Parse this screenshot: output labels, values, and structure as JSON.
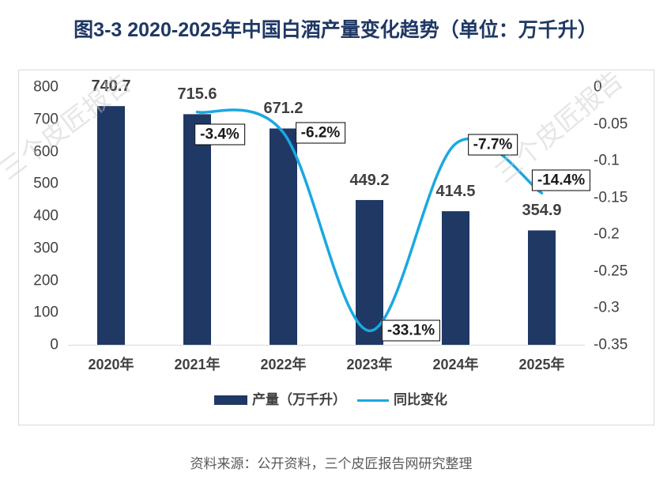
{
  "title": "图3-3 2020-2025年中国白酒产量变化趋势（单位：万千升）",
  "watermark": "三个皮匠报告",
  "source": "资料来源：公开资料，三个皮匠报告网研究整理",
  "colors": {
    "title": "#1F3864",
    "bar": "#1F3864",
    "line": "#1BA8E0",
    "axis_text": "#404040",
    "label_text": "#1A1A1A",
    "label_border": "#000000",
    "source_text": "#595959",
    "frame": "#D9D9D9",
    "watermark": "#C8C8C8"
  },
  "chart_data": {
    "type": "bar",
    "categories": [
      "2020年",
      "2021年",
      "2022年",
      "2023年",
      "2024年",
      "2025年"
    ],
    "series": [
      {
        "name": "产量（万千升）",
        "type": "bar",
        "axis": "left",
        "values": [
          740.7,
          715.6,
          671.2,
          449.2,
          414.5,
          354.9
        ]
      },
      {
        "name": "同比变化",
        "type": "line",
        "smooth": true,
        "axis": "right",
        "values": [
          null,
          -0.034,
          -0.062,
          -0.331,
          -0.077,
          -0.144
        ],
        "data_labels": [
          "",
          "-3.4%",
          "-6.2%",
          "-33.1%",
          "-7.7%",
          "-14.4%"
        ]
      }
    ],
    "ylim": [
      0,
      800
    ],
    "yticks": [
      0,
      100,
      200,
      300,
      400,
      500,
      600,
      700,
      800
    ],
    "y2lim": [
      -0.35,
      0
    ],
    "y2ticks": [
      0,
      -0.05,
      -0.1,
      -0.15,
      -0.2,
      -0.25,
      -0.3,
      -0.35
    ],
    "grid": false,
    "legend": "bottom"
  }
}
